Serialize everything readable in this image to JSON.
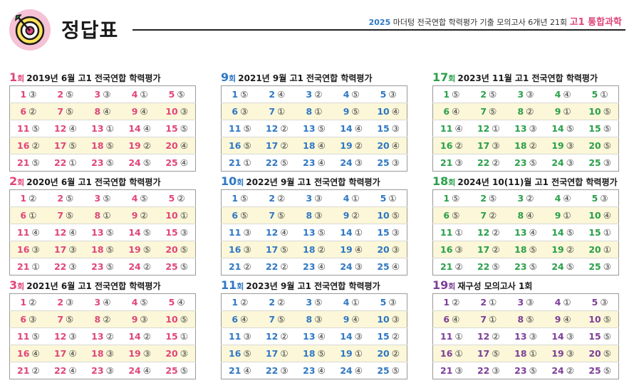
{
  "header": {
    "title": "정답표",
    "year": "2025",
    "subtitle": "마더텅 전국연합 학력평가 기출 모의고사 6개년 21회",
    "grade": "고1 통합과학"
  },
  "colors": {
    "pink": "#e0457b",
    "blue": "#2f78c4",
    "green": "#2aa04a",
    "purple": "#7d3f98"
  },
  "columns": [
    [
      {
        "num": "1",
        "hoe": "회",
        "label": "2019년 6월 고1 전국연합 학력평가",
        "color": "pink",
        "answers": [
          "③",
          "⑤",
          "③",
          "①",
          "⑤",
          "②",
          "⑤",
          "④",
          "④",
          "③",
          "⑤",
          "④",
          "①",
          "④",
          "⑤",
          "②",
          "⑤",
          "⑤",
          "②",
          "④",
          "⑤",
          "①",
          "⑤",
          "⑤",
          "④"
        ]
      },
      {
        "num": "2",
        "hoe": "회",
        "label": "2020년 6월 고1 전국연합 학력평가",
        "color": "pink",
        "answers": [
          "②",
          "⑤",
          "⑤",
          "⑤",
          "②",
          "①",
          "⑤",
          "①",
          "②",
          "①",
          "④",
          "④",
          "⑤",
          "⑤",
          "③",
          "③",
          "③",
          "⑤",
          "⑤",
          "⑤",
          "①",
          "③",
          "⑤",
          "②",
          "⑤"
        ]
      },
      {
        "num": "3",
        "hoe": "회",
        "label": "2021년 6월 고1 전국연합 학력평가",
        "color": "pink",
        "answers": [
          "②",
          "③",
          "④",
          "⑤",
          "④",
          "③",
          "⑤",
          "②",
          "③",
          "⑤",
          "⑤",
          "③",
          "②",
          "②",
          "①",
          "④",
          "④",
          "③",
          "③",
          "③",
          "②",
          "④",
          "③",
          "④",
          "⑤"
        ]
      }
    ],
    [
      {
        "num": "9",
        "hoe": "회",
        "label": "2021년 9월 고1 전국연합 학력평가",
        "color": "blue",
        "answers": [
          "⑤",
          "④",
          "②",
          "⑤",
          "③",
          "③",
          "①",
          "①",
          "⑤",
          "④",
          "⑤",
          "②",
          "⑤",
          "④",
          "③",
          "⑤",
          "②",
          "④",
          "②",
          "④",
          "①",
          "⑤",
          "④",
          "③",
          "③"
        ]
      },
      {
        "num": "10",
        "hoe": "회",
        "label": "2022년 9월 고1 전국연합 학력평가",
        "color": "blue",
        "answers": [
          "⑤",
          "②",
          "③",
          "①",
          "①",
          "⑤",
          "⑤",
          "③",
          "②",
          "⑤",
          "③",
          "④",
          "⑤",
          "①",
          "③",
          "③",
          "⑤",
          "②",
          "④",
          "③",
          "②",
          "②",
          "④",
          "③",
          "④"
        ]
      },
      {
        "num": "11",
        "hoe": "회",
        "label": "2023년 9월 고1 전국연합 학력평가",
        "color": "blue",
        "answers": [
          "②",
          "②",
          "⑤",
          "①",
          "③",
          "④",
          "⑤",
          "③",
          "④",
          "③",
          "③",
          "②",
          "④",
          "③",
          "②",
          "⑤",
          "①",
          "⑤",
          "①",
          "②",
          "④",
          "③",
          "④",
          "④",
          "⑤"
        ]
      }
    ],
    [
      {
        "num": "17",
        "hoe": "회",
        "label": "2023년 11월 고1 전국연합 학력평가",
        "color": "green",
        "answers": [
          "⑤",
          "⑤",
          "③",
          "④",
          "①",
          "④",
          "⑤",
          "②",
          "①",
          "⑤",
          "④",
          "①",
          "③",
          "⑤",
          "⑤",
          "②",
          "③",
          "②",
          "③",
          "⑤",
          "③",
          "②",
          "⑤",
          "③",
          "③"
        ]
      },
      {
        "num": "18",
        "hoe": "회",
        "label": "2024년 10(11)월 고1 전국연합 학력평가",
        "color": "green",
        "answers": [
          "⑤",
          "⑤",
          "②",
          "④",
          "③",
          "⑤",
          "②",
          "④",
          "①",
          "④",
          "①",
          "②",
          "④",
          "⑤",
          "①",
          "③",
          "②",
          "⑤",
          "②",
          "①",
          "②",
          "⑤",
          "⑤",
          "⑤",
          "③"
        ]
      },
      {
        "num": "19",
        "hoe": "회",
        "label": "재구성 모의고사 1회",
        "color": "purple",
        "answers": [
          "②",
          "①",
          "③",
          "①",
          "③",
          "④",
          "①",
          "⑤",
          "④",
          "⑤",
          "①",
          "②",
          "③",
          "③",
          "⑤",
          "①",
          "⑤",
          "①",
          "③",
          "⑤",
          "③",
          "③",
          "⑤",
          "②",
          "⑤"
        ]
      }
    ]
  ]
}
